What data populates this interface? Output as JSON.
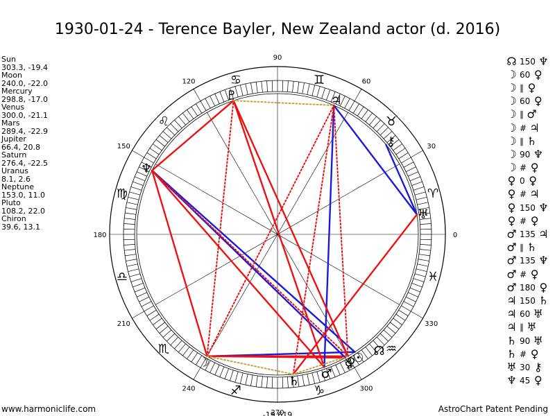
{
  "title": "1930-01-24 - Terence Bayler, New Zealand actor (d. 2016)",
  "planets": [
    {
      "name": "Sun",
      "coords": "303.3, -19.4",
      "symbol": "☉",
      "lon": 303.3
    },
    {
      "name": "Moon",
      "coords": "240.0, -22.0",
      "symbol": "☽",
      "lon": 240.0
    },
    {
      "name": "Mercury",
      "coords": "298.8, -17.0",
      "symbol": "☿",
      "lon": 298.8
    },
    {
      "name": "Venus",
      "coords": "300.0, -21.1",
      "symbol": "♀",
      "lon": 300.0
    },
    {
      "name": "Mars",
      "coords": "289.4, -22.9",
      "symbol": "♂",
      "lon": 289.4
    },
    {
      "name": "Jupiter",
      "coords": "66.4, 20.8",
      "symbol": "♃",
      "lon": 66.4
    },
    {
      "name": "Saturn",
      "coords": "276.4, -22.5",
      "symbol": "♄",
      "lon": 276.4
    },
    {
      "name": "Uranus",
      "coords": "8.1, 2.6",
      "symbol": "♅",
      "lon": 8.1
    },
    {
      "name": "Neptune",
      "coords": "153.0, 11.0",
      "symbol": "♆",
      "lon": 153.0
    },
    {
      "name": "Pluto",
      "coords": "108.2, 22.0",
      "symbol": "♇",
      "lon": 108.2
    },
    {
      "name": "Chiron",
      "coords": "39.6, 13.1",
      "symbol": "⚷",
      "lon": 39.6
    }
  ],
  "aspects": [
    {
      "p1": "☊",
      "type": "150",
      "p2": "♆"
    },
    {
      "p1": "☽",
      "type": "60",
      "p2": "♀"
    },
    {
      "p1": "☽",
      "type": "∥",
      "p2": "♀"
    },
    {
      "p1": "☽",
      "type": "60",
      "p2": "♀"
    },
    {
      "p1": "☽",
      "type": "∥",
      "p2": "♂"
    },
    {
      "p1": "☽",
      "type": "#",
      "p2": "♃"
    },
    {
      "p1": "☽",
      "type": "∥",
      "p2": "♄"
    },
    {
      "p1": "☽",
      "type": "90",
      "p2": "♆"
    },
    {
      "p1": "☽",
      "type": "#",
      "p2": "♀"
    },
    {
      "p1": "♀",
      "type": "0",
      "p2": "♀"
    },
    {
      "p1": "♀",
      "type": "#",
      "p2": "♃"
    },
    {
      "p1": "♀",
      "type": "150",
      "p2": "♆"
    },
    {
      "p1": "♀",
      "type": "#",
      "p2": "♀"
    },
    {
      "p1": "♂",
      "type": "135",
      "p2": "♃"
    },
    {
      "p1": "♂",
      "type": "∥",
      "p2": "♄"
    },
    {
      "p1": "♂",
      "type": "135",
      "p2": "♆"
    },
    {
      "p1": "♂",
      "type": "#",
      "p2": "♀"
    },
    {
      "p1": "♂",
      "type": "180",
      "p2": "♀"
    },
    {
      "p1": "♃",
      "type": "150",
      "p2": "♄"
    },
    {
      "p1": "♃",
      "type": "60",
      "p2": "♅"
    },
    {
      "p1": "♃",
      "type": "∥",
      "p2": "♅"
    },
    {
      "p1": "♄",
      "type": "90",
      "p2": "♅"
    },
    {
      "p1": "♄",
      "type": "#",
      "p2": "♀"
    },
    {
      "p1": "♅",
      "type": "30",
      "p2": "⚷"
    },
    {
      "p1": "♆",
      "type": "45",
      "p2": "♀"
    }
  ],
  "wheel": {
    "degree_labels": [
      {
        "text": "0",
        "deg": 0
      },
      {
        "text": "30",
        "deg": 30
      },
      {
        "text": "60",
        "deg": 60
      },
      {
        "text": "90",
        "deg": 90
      },
      {
        "text": "120",
        "deg": 120
      },
      {
        "text": "150",
        "deg": 150
      },
      {
        "text": "180",
        "deg": 180
      },
      {
        "text": "210",
        "deg": 210
      },
      {
        "text": "240",
        "deg": 240
      },
      {
        "text": "270",
        "deg": 270
      },
      {
        "text": "300",
        "deg": 300
      },
      {
        "text": "330",
        "deg": 330
      }
    ],
    "signs": [
      {
        "symbol": "♈",
        "deg": 15
      },
      {
        "symbol": "♉",
        "deg": 45
      },
      {
        "symbol": "♊",
        "deg": 75
      },
      {
        "symbol": "♋",
        "deg": 105
      },
      {
        "symbol": "♌",
        "deg": 135
      },
      {
        "symbol": "♍",
        "deg": 165
      },
      {
        "symbol": "♎",
        "deg": 195
      },
      {
        "symbol": "♏",
        "deg": 225
      },
      {
        "symbol": "♐",
        "deg": 255
      },
      {
        "symbol": "♑",
        "deg": 285
      },
      {
        "symbol": "♒",
        "deg": 315
      },
      {
        "symbol": "♓",
        "deg": 345
      }
    ],
    "node_symbol": "☊",
    "node_lon": 308,
    "bottom_label": "-19,619",
    "colors": {
      "red": "#ee1111",
      "blue": "#1a1add",
      "gold": "#c8a040"
    }
  },
  "chart_lines": [
    {
      "from": 240.0,
      "to": 303.3,
      "color": "blue",
      "style": "solid"
    },
    {
      "from": 240.0,
      "to": 298.8,
      "color": "red",
      "style": "solid"
    },
    {
      "from": 240.0,
      "to": 300.0,
      "color": "red",
      "style": "solid"
    },
    {
      "from": 108.2,
      "to": 153.0,
      "color": "red",
      "style": "solid"
    },
    {
      "from": 108.2,
      "to": 289.4,
      "color": "red",
      "style": "solid"
    },
    {
      "from": 153.0,
      "to": 303.3,
      "color": "blue",
      "style": "solid"
    },
    {
      "from": 153.0,
      "to": 298.8,
      "color": "blue",
      "style": "solid"
    },
    {
      "from": 153.0,
      "to": 289.4,
      "color": "red",
      "style": "solid"
    },
    {
      "from": 153.0,
      "to": 240.0,
      "color": "red",
      "style": "solid"
    },
    {
      "from": 66.4,
      "to": 289.4,
      "color": "blue",
      "style": "solid"
    },
    {
      "from": 66.4,
      "to": 8.1,
      "color": "blue",
      "style": "solid"
    },
    {
      "from": 39.6,
      "to": 8.1,
      "color": "blue",
      "style": "solid"
    },
    {
      "from": 8.1,
      "to": 276.4,
      "color": "red",
      "style": "solid"
    },
    {
      "from": 300.0,
      "to": 108.2,
      "color": "red",
      "style": "solid"
    },
    {
      "from": 240.0,
      "to": 108.2,
      "color": "red",
      "style": "dotted"
    },
    {
      "from": 240.0,
      "to": 66.4,
      "color": "red",
      "style": "dotted"
    },
    {
      "from": 276.4,
      "to": 66.4,
      "color": "red",
      "style": "dotted"
    },
    {
      "from": 300.0,
      "to": 66.4,
      "color": "red",
      "style": "dotted"
    },
    {
      "from": 108.2,
      "to": 289.4,
      "color": "red",
      "style": "dotted"
    },
    {
      "from": 153.0,
      "to": 300.0,
      "color": "red",
      "style": "dotted"
    },
    {
      "from": 108.2,
      "to": 66.4,
      "color": "gold",
      "style": "dotted"
    },
    {
      "from": 240.0,
      "to": 276.4,
      "color": "gold",
      "style": "dotted"
    },
    {
      "from": 276.4,
      "to": 300.0,
      "color": "gold",
      "style": "dotted"
    }
  ],
  "footer": {
    "left": "www.harmoniclife.com",
    "right": "AstroChart Patent Pending"
  }
}
